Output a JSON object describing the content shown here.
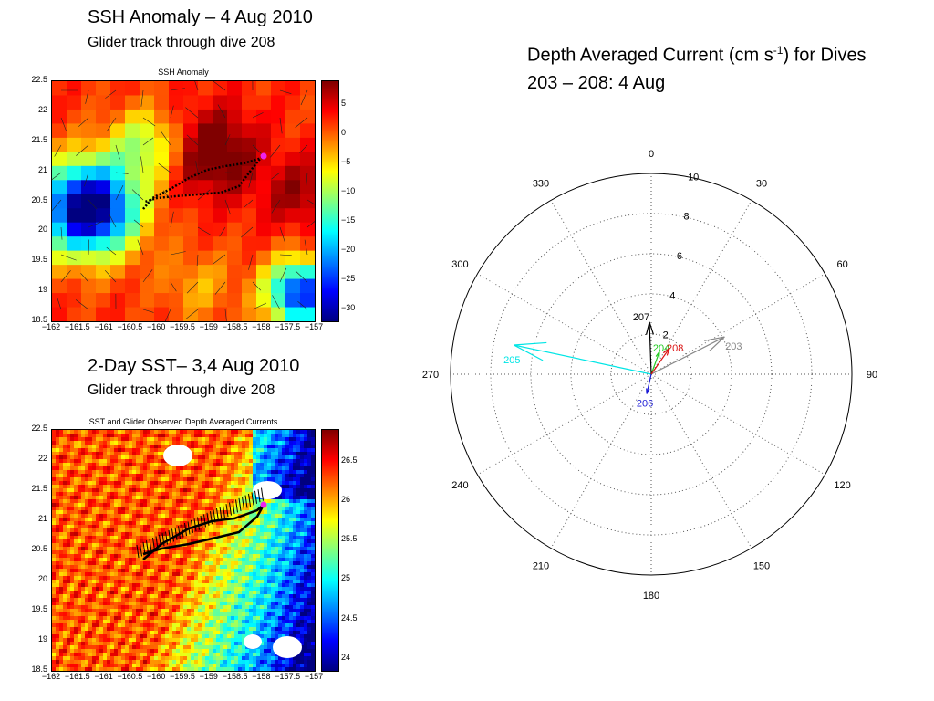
{
  "slide": {
    "ssh_title": "SSH Anomaly – 4 Aug 2010",
    "ssh_subtitle": "Glider track through dive 208",
    "sst_title": "2-Day SST– 3,4 Aug 2010",
    "sst_subtitle": "Glider track through dive 208",
    "polar_title_line1_pre": "Depth Averaged Current (cm s",
    "polar_title_sup": "-1",
    "polar_title_line1_post": ") for Dives",
    "polar_title_line2": "203 – 208: 4 Aug"
  },
  "chart_data": [
    {
      "type": "heatmap",
      "title": "SSH Anomaly",
      "xlim": [
        -162,
        -157
      ],
      "ylim": [
        18.5,
        22.5
      ],
      "x_ticks": [
        "−162",
        "−161.5",
        "−161",
        "−160.5",
        "−160",
        "−159.5",
        "−159",
        "−158.5",
        "−158",
        "−157.5",
        "−157"
      ],
      "y_ticks": [
        "22.5",
        "22",
        "21.5",
        "21",
        "20.5",
        "20",
        "19.5",
        "19",
        "18.5"
      ],
      "colorbar_ticks": [
        "5",
        "0",
        "−5",
        "−10",
        "−15",
        "−20",
        "−25",
        "−30"
      ],
      "colorbar_range": [
        -32,
        9
      ]
    },
    {
      "type": "heatmap",
      "title": "SST and Glider Observed Depth Averaged Currents",
      "xlim": [
        -162,
        -157
      ],
      "ylim": [
        18.5,
        22.5
      ],
      "x_ticks": [
        "−162",
        "−161.5",
        "−161",
        "−160.5",
        "−160",
        "−159.5",
        "−159",
        "−158.5",
        "−158",
        "−157.5",
        "−157"
      ],
      "y_ticks": [
        "22.5",
        "22",
        "21.5",
        "21",
        "20.5",
        "20",
        "19.5",
        "19",
        "18.5"
      ],
      "colorbar_ticks": [
        "26.5",
        "26",
        "25.5",
        "25",
        "24.5",
        "24"
      ],
      "colorbar_range": [
        23.85,
        26.9
      ]
    },
    {
      "type": "polar",
      "r_max": 10,
      "radial_ticks": [
        "2",
        "4",
        "6",
        "8",
        "10"
      ],
      "angle_ticks": [
        "0",
        "30",
        "60",
        "90",
        "120",
        "150",
        "180",
        "210",
        "240",
        "270",
        "300",
        "330"
      ],
      "grid": true,
      "series": [
        {
          "name": "203",
          "direction_deg": 63,
          "speed": 4.1,
          "color": "#888888"
        },
        {
          "name": "204",
          "direction_deg": 20,
          "speed": 1.2,
          "color": "#22cc22"
        },
        {
          "name": "205",
          "direction_deg": 282,
          "speed": 7.0,
          "color": "#00e5e5"
        },
        {
          "name": "206",
          "direction_deg": 193,
          "speed": 1.0,
          "color": "#1a1ad6"
        },
        {
          "name": "207",
          "direction_deg": 358,
          "speed": 2.6,
          "color": "#000000"
        },
        {
          "name": "208",
          "direction_deg": 35,
          "speed": 1.6,
          "color": "#dd1111"
        }
      ]
    }
  ]
}
